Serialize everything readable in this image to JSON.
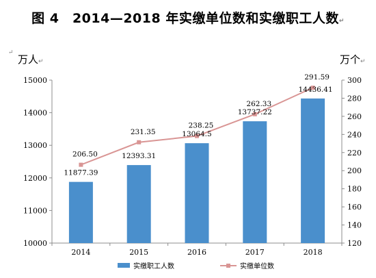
{
  "chart_data": {
    "type": "bar+line",
    "title": "图 4　2014—2018 年实缴单位数和实缴职工人数",
    "ylabel_left": "万人",
    "ylabel_right": "万个",
    "categories": [
      "2014",
      "2015",
      "2016",
      "2017",
      "2018"
    ],
    "series": [
      {
        "name": "实缴职工人数",
        "type": "bar",
        "axis": "left",
        "color": "#4a8fcc",
        "values": [
          11877.39,
          12393.31,
          13064.5,
          13737.22,
          14436.41
        ],
        "labels": [
          "11877.39",
          "12393.31",
          "13064.5",
          "13737.22",
          "14436.41"
        ]
      },
      {
        "name": "实缴单位数",
        "type": "line",
        "axis": "right",
        "color": "#d99594",
        "values": [
          206.5,
          231.35,
          238.25,
          262.33,
          291.59
        ],
        "labels": [
          "206.50",
          "231.35",
          "238.25",
          "262.33",
          "291.59"
        ]
      }
    ],
    "ylim_left": [
      10000,
      15000
    ],
    "yticks_left": [
      10000,
      11000,
      12000,
      13000,
      14000,
      15000
    ],
    "ylim_right": [
      120,
      300
    ],
    "yticks_right": [
      120,
      140,
      160,
      180,
      200,
      220,
      240,
      260,
      280,
      300
    ],
    "grid": false,
    "legend": "bottom"
  },
  "marks": {
    "arrow": "↵"
  }
}
